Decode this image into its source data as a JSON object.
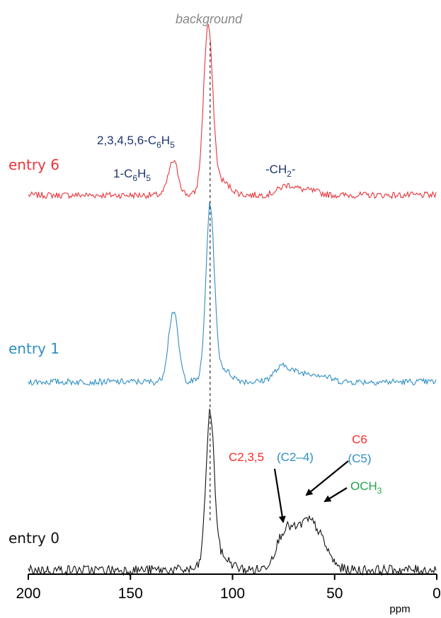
{
  "chart_data": {
    "type": "line",
    "title": "",
    "xlabel": "ppm",
    "ylabel": "",
    "xlim": [
      200,
      0
    ],
    "x_reversed": true,
    "grid": false,
    "xticks": [
      200,
      150,
      100,
      50,
      0
    ],
    "top_label": "background",
    "reference_line_ppm": 111,
    "series": [
      {
        "name": "entry 6",
        "color": "#e8353b",
        "peaks": [
          [
            129,
            48
          ],
          [
            112,
            228
          ],
          [
            73,
            14
          ],
          [
            62,
            6
          ]
        ]
      },
      {
        "name": "entry 1",
        "color": "#2e8fc4",
        "peaks": [
          [
            129,
            100
          ],
          [
            111,
            236
          ],
          [
            75,
            22
          ],
          [
            64,
            10
          ],
          [
            56,
            7
          ]
        ]
      },
      {
        "name": "entry 0",
        "color": "#111111",
        "peaks": [
          [
            111,
            208
          ],
          [
            74,
            55
          ],
          [
            64,
            55
          ],
          [
            57,
            34
          ]
        ]
      }
    ],
    "annotations": {
      "entry6_aromatic": {
        "text_main": "2,3,4,5,6-C",
        "sub1": "6",
        "mid": "H",
        "sub2": "5",
        "color": "#1f3570"
      },
      "entry6_ipso": {
        "text_main": "1-C",
        "sub1": "6",
        "mid": "H",
        "sub2": "5",
        "color": "#1f3570"
      },
      "entry6_ch2": {
        "text_main": "-CH",
        "sub1": "2",
        "tail": "-",
        "color": "#1f3570"
      },
      "c235": {
        "text": "C2,3,5",
        "color": "#ff2a2a"
      },
      "c24": {
        "text": "(C2–4)",
        "color": "#2e8fc4"
      },
      "c6": {
        "text": "C6",
        "color": "#ff2a2a"
      },
      "c5": {
        "text": "(C5)",
        "color": "#2e8fc4"
      },
      "och3": {
        "text_main": "OCH",
        "sub1": "3",
        "color": "#1ea64a"
      }
    }
  }
}
